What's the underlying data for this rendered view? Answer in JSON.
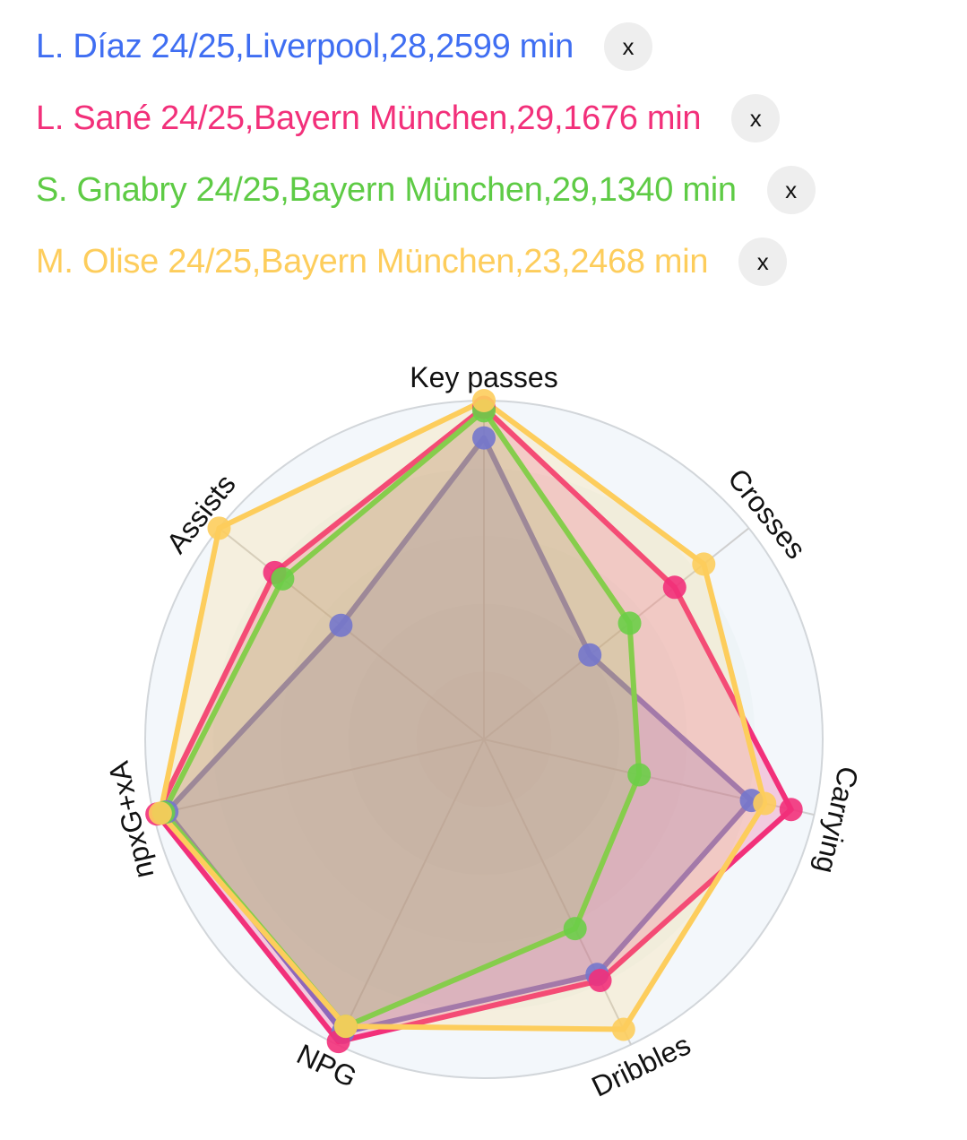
{
  "legend": [
    {
      "label": "L. Díaz 24/25,Liverpool,28,2599 min",
      "color": "#3f6ef2",
      "close": "x"
    },
    {
      "label": "L. Sané 24/25,Bayern München,29,1676 min",
      "color": "#f2307a",
      "close": "x"
    },
    {
      "label": "S. Gnabry 24/25,Bayern München,29,1340 min",
      "color": "#5ecb45",
      "close": "x"
    },
    {
      "label": "M. Olise 24/25,Bayern München,23,2468 min",
      "color": "#fdcd5c",
      "close": "x"
    }
  ],
  "chart_data": {
    "type": "radar",
    "categories": [
      "Key passes",
      "Crosses",
      "Carrying",
      "Dribbles",
      "NPG",
      "npxG+xA",
      "Assists"
    ],
    "range": [
      0,
      100
    ],
    "series": [
      {
        "name": "L. Díaz 24/25",
        "line_color": "#7477cc",
        "values": [
          89,
          40,
          81,
          77,
          96,
          96,
          54
        ]
      },
      {
        "name": "L. Sané 24/25",
        "line_color": "#f2307a",
        "values": [
          98,
          72,
          93,
          79,
          99,
          99,
          79
        ]
      },
      {
        "name": "S. Gnabry 24/25",
        "line_color": "#6cce48",
        "values": [
          97,
          55,
          47,
          62,
          94,
          97,
          76
        ]
      },
      {
        "name": "M. Olise 24/25",
        "line_color": "#fdcd5c",
        "values": [
          100,
          83,
          85,
          95,
          94,
          98,
          100
        ]
      }
    ]
  }
}
